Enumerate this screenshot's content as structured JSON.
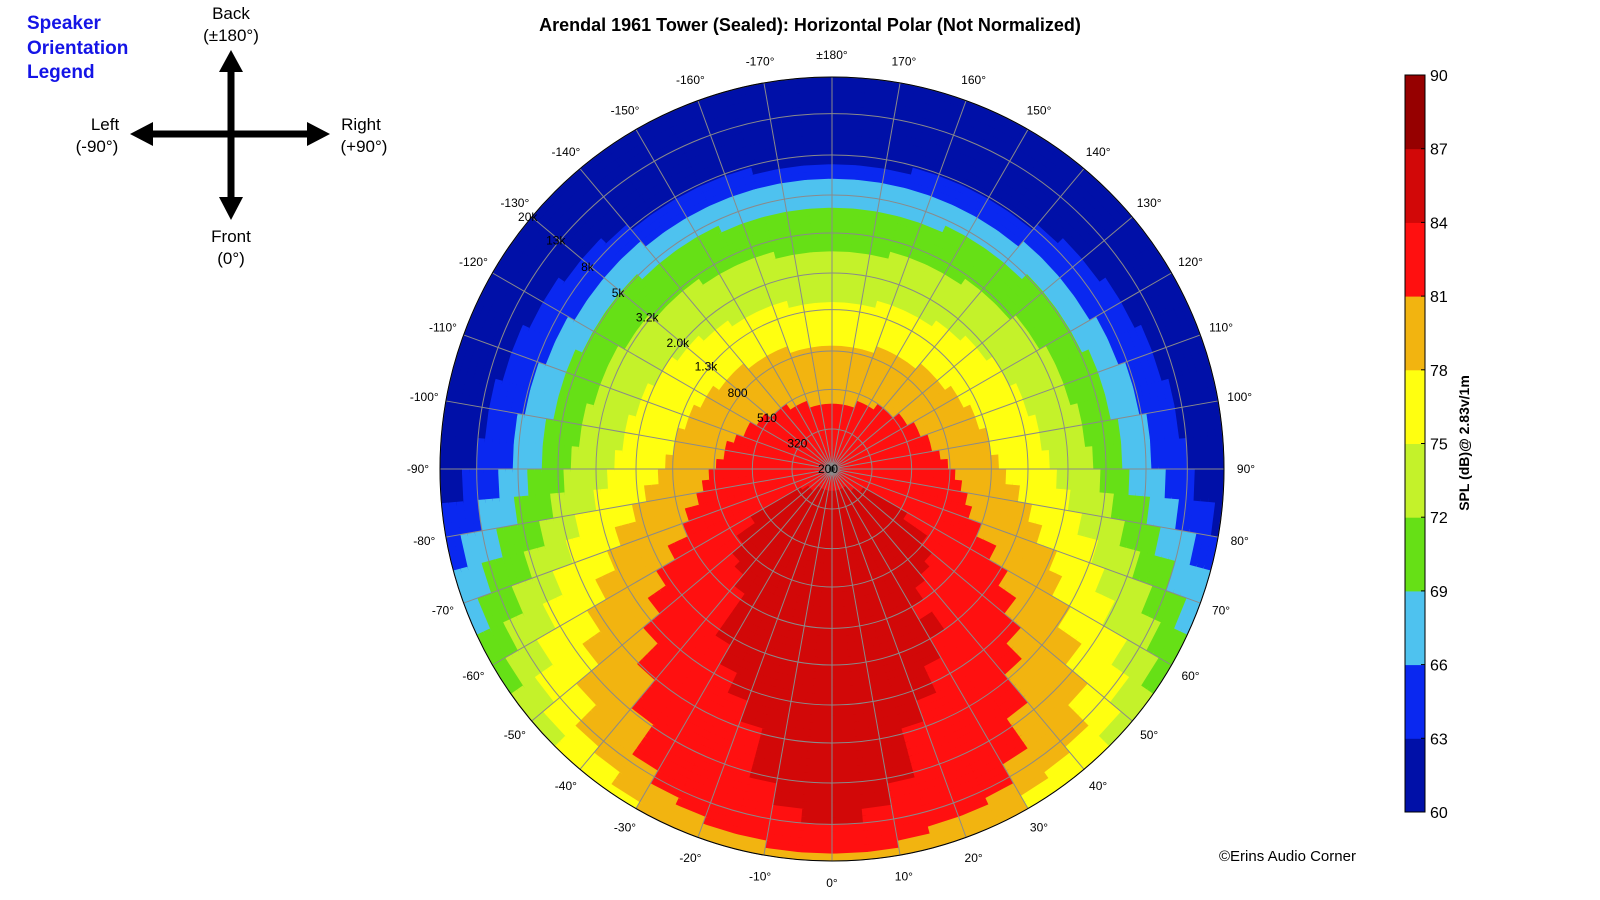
{
  "legend": {
    "title_lines": [
      "Speaker",
      "Orientation",
      "Legend"
    ],
    "back_label": "Back",
    "back_sub": "(±180°)",
    "left_label": "Left",
    "left_sub": "(-90°)",
    "right_label": "Right",
    "right_sub": "(+90°)",
    "front_label": "Front",
    "front_sub": "(0°)"
  },
  "copyright": "©Erins Audio Corner",
  "chart_data": {
    "type": "heatmap",
    "subtype": "polar-contour",
    "title": "Arendal 1961 Tower (Sealed): Horizontal Polar (Not Normalized)",
    "angle_ticks": [
      {
        "deg": 0,
        "label": "0°"
      },
      {
        "deg": 10,
        "label": "10°"
      },
      {
        "deg": 20,
        "label": "20°"
      },
      {
        "deg": 30,
        "label": "30°"
      },
      {
        "deg": 40,
        "label": "40°"
      },
      {
        "deg": 50,
        "label": "50°"
      },
      {
        "deg": 60,
        "label": "60°"
      },
      {
        "deg": 70,
        "label": "70°"
      },
      {
        "deg": 80,
        "label": "80°"
      },
      {
        "deg": 90,
        "label": "90°"
      },
      {
        "deg": 100,
        "label": "100°"
      },
      {
        "deg": 110,
        "label": "110°"
      },
      {
        "deg": 120,
        "label": "120°"
      },
      {
        "deg": 130,
        "label": "130°"
      },
      {
        "deg": 140,
        "label": "140°"
      },
      {
        "deg": 150,
        "label": "150°"
      },
      {
        "deg": 160,
        "label": "160°"
      },
      {
        "deg": 170,
        "label": "170°"
      },
      {
        "deg": 180,
        "label": "±180°"
      },
      {
        "deg": -10,
        "label": "-10°"
      },
      {
        "deg": -20,
        "label": "-20°"
      },
      {
        "deg": -30,
        "label": "-30°"
      },
      {
        "deg": -40,
        "label": "-40°"
      },
      {
        "deg": -50,
        "label": "-50°"
      },
      {
        "deg": -60,
        "label": "-60°"
      },
      {
        "deg": -70,
        "label": "-70°"
      },
      {
        "deg": -80,
        "label": "-80°"
      },
      {
        "deg": -90,
        "label": "-90°"
      },
      {
        "deg": -100,
        "label": "-100°"
      },
      {
        "deg": -110,
        "label": "-110°"
      },
      {
        "deg": -120,
        "label": "-120°"
      },
      {
        "deg": -130,
        "label": "-130°"
      },
      {
        "deg": -140,
        "label": "-140°"
      },
      {
        "deg": -150,
        "label": "-150°"
      },
      {
        "deg": -160,
        "label": "-160°"
      },
      {
        "deg": -170,
        "label": "-170°"
      }
    ],
    "freq_ticks": [
      {
        "hz": 200,
        "label": "200"
      },
      {
        "hz": 320,
        "label": "320"
      },
      {
        "hz": 510,
        "label": "510"
      },
      {
        "hz": 800,
        "label": "800"
      },
      {
        "hz": 1300,
        "label": "1.3k"
      },
      {
        "hz": 2000,
        "label": "2.0k"
      },
      {
        "hz": 3200,
        "label": "3.2k"
      },
      {
        "hz": 5000,
        "label": "5k"
      },
      {
        "hz": 8000,
        "label": "8k"
      },
      {
        "hz": 13000,
        "label": "13k"
      },
      {
        "hz": 20000,
        "label": "20k"
      }
    ],
    "radial_scale": "log",
    "freq_range_hz": [
      200,
      20000
    ],
    "grid": true,
    "colorbar": {
      "label": "SPL (dB)@ 2.83v/1m",
      "ticks": [
        60,
        63,
        66,
        69,
        72,
        75,
        78,
        81,
        84,
        87,
        90
      ],
      "range": [
        60,
        90
      ],
      "colors": [
        "#0010a8",
        "#0a28f0",
        "#4ec2ef",
        "#66e016",
        "#c4f22a",
        "#ffff10",
        "#f2b410",
        "#ff1010",
        "#d20808",
        "#960000"
      ]
    },
    "directivity_profile": [
      {
        "hz": 200,
        "front_db": 83.5,
        "side_db": 83.5,
        "back_db": 83.0
      },
      {
        "hz": 320,
        "front_db": 84.5,
        "side_db": 83.5,
        "back_db": 82.0
      },
      {
        "hz": 510,
        "front_db": 85.5,
        "side_db": 82.5,
        "back_db": 80.5
      },
      {
        "hz": 800,
        "front_db": 86.0,
        "side_db": 81.0,
        "back_db": 78.5
      },
      {
        "hz": 1300,
        "front_db": 85.0,
        "side_db": 78.5,
        "back_db": 75.5
      },
      {
        "hz": 2000,
        "front_db": 85.5,
        "side_db": 76.5,
        "back_db": 73.5
      },
      {
        "hz": 3200,
        "front_db": 85.0,
        "side_db": 74.0,
        "back_db": 71.0
      },
      {
        "hz": 5000,
        "front_db": 84.5,
        "side_db": 71.0,
        "back_db": 68.0
      },
      {
        "hz": 8000,
        "front_db": 84.5,
        "side_db": 67.0,
        "back_db": 62.0
      },
      {
        "hz": 13000,
        "front_db": 84.0,
        "side_db": 63.0,
        "back_db": 60.0
      },
      {
        "hz": 20000,
        "front_db": 80.0,
        "side_db": 60.0,
        "back_db": 60.0
      }
    ]
  }
}
